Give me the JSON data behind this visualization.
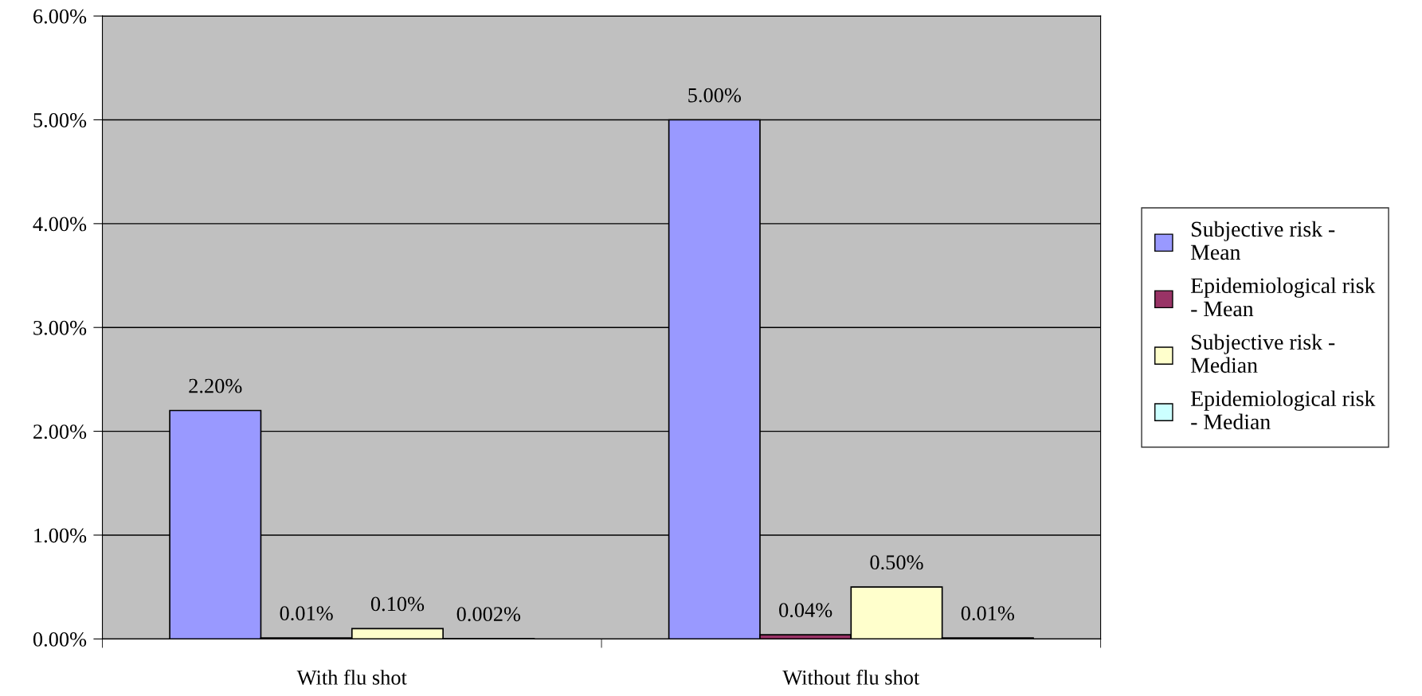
{
  "chart_data": {
    "type": "bar",
    "categories": [
      "With flu shot",
      "Without flu shot"
    ],
    "series": [
      {
        "name": "Subjective risk -\nMean",
        "color": "#9999ff",
        "values": [
          2.2,
          5.0
        ],
        "value_labels": [
          "2.20%",
          "5.00%"
        ]
      },
      {
        "name": "Epidemiological risk\n- Mean",
        "color": "#993366",
        "values": [
          0.01,
          0.04
        ],
        "value_labels": [
          "0.01%",
          "0.04%"
        ]
      },
      {
        "name": "Subjective risk -\nMedian",
        "color": "#ffffcc",
        "values": [
          0.1,
          0.5
        ],
        "value_labels": [
          "0.10%",
          "0.50%"
        ]
      },
      {
        "name": "Epidemiological risk\n- Median",
        "color": "#ccffff",
        "values": [
          0.002,
          0.01
        ],
        "value_labels": [
          "0.002%",
          "0.01%"
        ]
      }
    ],
    "ylim": [
      0,
      6
    ],
    "yticks": [
      {
        "value": 0,
        "label": "0.00%"
      },
      {
        "value": 1,
        "label": "1.00%"
      },
      {
        "value": 2,
        "label": "2.00%"
      },
      {
        "value": 3,
        "label": "3.00%"
      },
      {
        "value": 4,
        "label": "4.00%"
      },
      {
        "value": 5,
        "label": "5.00%"
      },
      {
        "value": 6,
        "label": "6.00%"
      }
    ],
    "grid": "y",
    "legend": "right"
  }
}
